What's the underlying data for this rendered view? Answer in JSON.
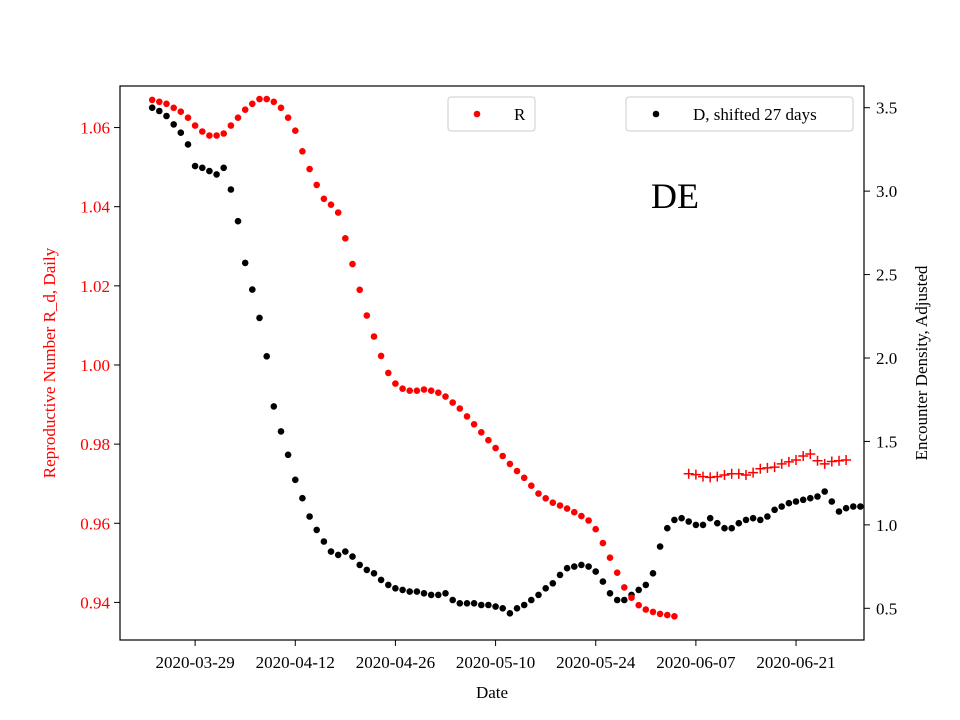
{
  "chart_data": {
    "type": "scatter",
    "region_label": "DE",
    "xlabel": "Date",
    "ylabel_left": "Reproductive Number R_d, Daily",
    "ylabel_right": "Encounter Density, Adjusted",
    "x_ticks": [
      "2020-03-29",
      "2020-04-12",
      "2020-04-26",
      "2020-05-10",
      "2020-05-24",
      "2020-06-07",
      "2020-06-21"
    ],
    "x_tick_day_index": [
      6,
      20,
      34,
      48,
      62,
      76,
      90
    ],
    "xlim_day_index": [
      -4.5,
      99.5
    ],
    "x_origin_date": "2020-03-23",
    "y_left_ticks": [
      "0.94",
      "0.96",
      "0.98",
      "1.00",
      "1.02",
      "1.04",
      "1.06"
    ],
    "y_left_lim": [
      0.9305,
      1.0705
    ],
    "y_right_ticks": [
      "0.5",
      "1.0",
      "1.5",
      "2.0",
      "2.5",
      "3.0",
      "3.5"
    ],
    "y_right_lim": [
      0.31,
      3.63
    ],
    "colors": {
      "r_series": "#ff0000",
      "d_series": "#000000",
      "axis": "#000000",
      "left_axis_text": "#ff0000"
    },
    "legend": {
      "r_label": "R",
      "d_label": "D, shifted 27 days"
    },
    "series_r": {
      "name": "R",
      "axis": "left",
      "marker": "dot",
      "start_day_index": 0,
      "values": [
        1.067,
        1.0665,
        1.066,
        1.065,
        1.064,
        1.0625,
        1.0605,
        1.059,
        1.058,
        1.058,
        1.0585,
        1.0605,
        1.0625,
        1.0645,
        1.066,
        1.0672,
        1.0672,
        1.0665,
        1.065,
        1.0625,
        1.0592,
        1.054,
        1.0495,
        1.0455,
        1.042,
        1.0405,
        1.0385,
        1.032,
        1.0255,
        1.019,
        1.0125,
        1.0072,
        1.0023,
        0.998,
        0.9953,
        0.994,
        0.9935,
        0.9935,
        0.9938,
        0.9935,
        0.993,
        0.992,
        0.9905,
        0.989,
        0.987,
        0.985,
        0.983,
        0.981,
        0.979,
        0.977,
        0.975,
        0.9732,
        0.9715,
        0.9695,
        0.9675,
        0.9663,
        0.9652,
        0.9645,
        0.9637,
        0.9628,
        0.9618,
        0.9607,
        0.9585,
        0.955,
        0.9513,
        0.9475,
        0.9438,
        0.9412,
        0.9393,
        0.9382,
        0.9376,
        0.9371,
        0.9368,
        0.9365
      ]
    },
    "series_r_projection": {
      "name": "R (projection)",
      "axis": "left",
      "marker": "plus",
      "start_day_index": 75,
      "values": [
        0.9725,
        0.9723,
        0.9718,
        0.9716,
        0.9718,
        0.9722,
        0.9725,
        0.9725,
        0.9722,
        0.9728,
        0.9738,
        0.974,
        0.9742,
        0.975,
        0.9755,
        0.976,
        0.977,
        0.9775,
        0.9758,
        0.975,
        0.9756,
        0.9758,
        0.976
      ]
    },
    "series_d": {
      "name": "D, shifted 27 days",
      "axis": "right",
      "marker": "dot",
      "start_day_index": 0,
      "values": [
        3.5,
        3.48,
        3.45,
        3.4,
        3.35,
        3.28,
        3.15,
        3.14,
        3.12,
        3.1,
        3.14,
        3.01,
        2.82,
        2.57,
        2.41,
        2.24,
        2.01,
        1.71,
        1.56,
        1.42,
        1.27,
        1.16,
        1.05,
        0.97,
        0.9,
        0.84,
        0.82,
        0.84,
        0.81,
        0.76,
        0.73,
        0.71,
        0.67,
        0.64,
        0.62,
        0.61,
        0.6,
        0.6,
        0.59,
        0.58,
        0.58,
        0.59,
        0.55,
        0.53,
        0.53,
        0.53,
        0.52,
        0.52,
        0.51,
        0.5,
        0.47,
        0.5,
        0.52,
        0.55,
        0.58,
        0.62,
        0.65,
        0.7,
        0.74,
        0.75,
        0.76,
        0.75,
        0.72,
        0.66,
        0.59,
        0.55,
        0.55,
        0.58,
        0.61,
        0.64,
        0.71,
        0.87,
        0.98,
        1.03,
        1.04,
        1.02,
        1.0,
        1.0,
        1.04,
        1.01,
        0.98,
        0.98,
        1.01,
        1.03,
        1.04,
        1.03,
        1.05,
        1.09,
        1.11,
        1.13,
        1.14,
        1.15,
        1.16,
        1.17,
        1.2,
        1.14,
        1.08,
        1.1,
        1.11,
        1.11
      ]
    }
  }
}
